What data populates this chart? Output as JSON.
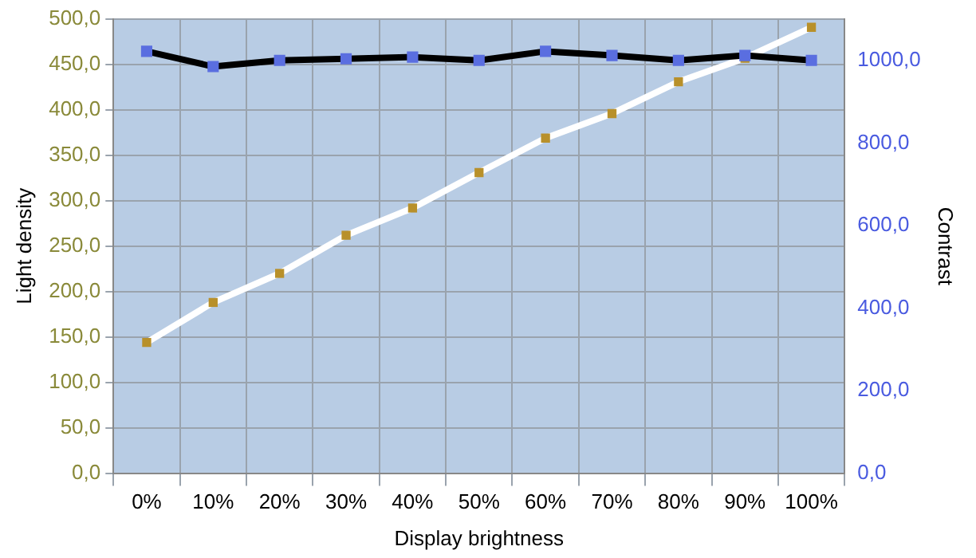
{
  "chart_data": {
    "type": "line",
    "xlabel": "Display brightness",
    "ylabel": "Light density",
    "y2label": "Contrast",
    "categories": [
      "0%",
      "10%",
      "20%",
      "30%",
      "40%",
      "50%",
      "60%",
      "70%",
      "80%",
      "90%",
      "100%"
    ],
    "series": [
      {
        "color": "#ffffff",
        "values": [
          144,
          188,
          220,
          262,
          292,
          331,
          369,
          396,
          431,
          457,
          491
        ]
      },
      {
        "color": "#000000",
        "axis": "y2",
        "values": [
          1022,
          985,
          1000,
          1004,
          1008,
          1000,
          1022,
          1012,
          1000,
          1012,
          1000
        ]
      }
    ],
    "ylim": [
      0,
      500
    ],
    "yticks": [
      {
        "value": 0,
        "label": "0,0"
      },
      {
        "value": 50,
        "label": "50,0"
      },
      {
        "value": 100,
        "label": "100,0"
      },
      {
        "value": 150,
        "label": "150,0"
      },
      {
        "value": 200,
        "label": "200,0"
      },
      {
        "value": 250,
        "label": "250,0"
      },
      {
        "value": 300,
        "label": "300,0"
      },
      {
        "value": 350,
        "label": "350,0"
      },
      {
        "value": 400,
        "label": "400,0"
      },
      {
        "value": 450,
        "label": "450,0"
      },
      {
        "value": 500,
        "label": "500,0"
      }
    ],
    "y2lim": [
      0,
      1100
    ],
    "y2ticks": [
      {
        "value": 0,
        "label": "0,0"
      },
      {
        "value": 200,
        "label": "200,0"
      },
      {
        "value": 400,
        "label": "400,0"
      },
      {
        "value": 600,
        "label": "600,0"
      },
      {
        "value": 800,
        "label": "800,0"
      },
      {
        "value": 1000,
        "label": "1000,0"
      }
    ],
    "grid": true,
    "legend": false,
    "marker": "square",
    "line_style": "solid"
  }
}
